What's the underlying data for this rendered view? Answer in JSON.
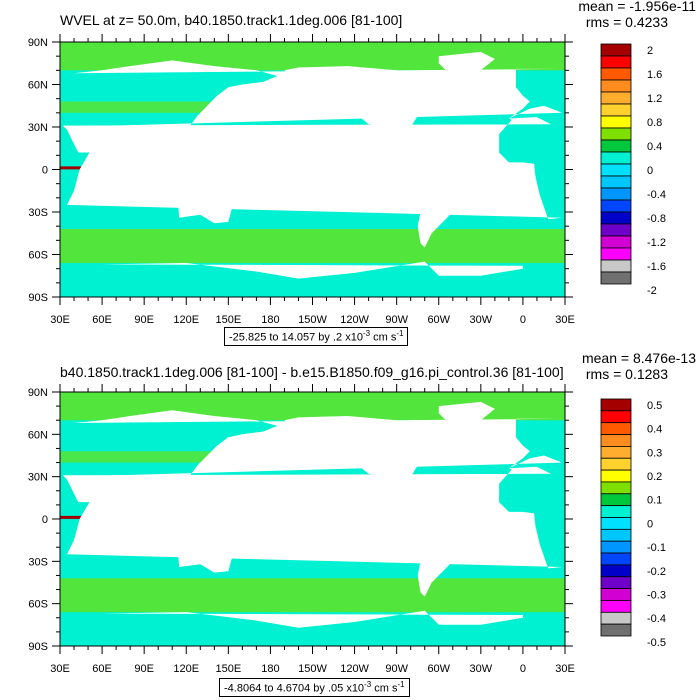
{
  "top": {
    "title": "WVEL at z=  50.0m, b40.1850.track1.1deg.006 [81-100]",
    "mean": "mean = -1.956e-11",
    "rms": "rms = 0.4233",
    "range_text": "-25.825 to 14.057 by .2 x10",
    "range_exp": "-3",
    "range_units": " cm s",
    "range_units_exp": "-1",
    "colorbar_labels": [
      "2",
      "1.6",
      "1.2",
      "0.8",
      "0.4",
      "0",
      "-0.4",
      "-0.8",
      "-1.2",
      "-1.6",
      "-2"
    ]
  },
  "bottom": {
    "title": "b40.1850.track1.1deg.006 [81-100] - b.e15.B1850.f09_g16.pi_control.36 [81-100]",
    "mean": "mean = 8.476e-13",
    "rms": "rms = 0.1283",
    "range_text": "-4.8064 to 4.6704 by .05 x10",
    "range_exp": "-3",
    "range_units": " cm s",
    "range_units_exp": "-1",
    "colorbar_labels": [
      "0.5",
      "0.4",
      "0.3",
      "0.2",
      "0.1",
      "0",
      "-0.1",
      "-0.2",
      "-0.3",
      "-0.4",
      "-0.5"
    ]
  },
  "lat_labels": [
    "90N",
    "60N",
    "30N",
    "0",
    "30S",
    "60S",
    "90S"
  ],
  "lon_labels": [
    "30E",
    "60E",
    "90E",
    "120E",
    "150E",
    "180",
    "150W",
    "120W",
    "90W",
    "60W",
    "30W",
    "0",
    "30E"
  ],
  "colorbar_colors": [
    "#a50000",
    "#ff0000",
    "#ff5a00",
    "#ff8c1e",
    "#ffad2e",
    "#ffd12e",
    "#ffff00",
    "#7fe000",
    "#00c83c",
    "#00f0d2",
    "#00e1ff",
    "#00c8ff",
    "#0096ff",
    "#0046ff",
    "#0000c8",
    "#6e00c8",
    "#d200d2",
    "#ff00ff",
    "#c8c8c8",
    "#707070"
  ],
  "map_colors": {
    "ocean": "#00f0d2",
    "subpolar": "#52e63c",
    "land": "#ffffff"
  }
}
